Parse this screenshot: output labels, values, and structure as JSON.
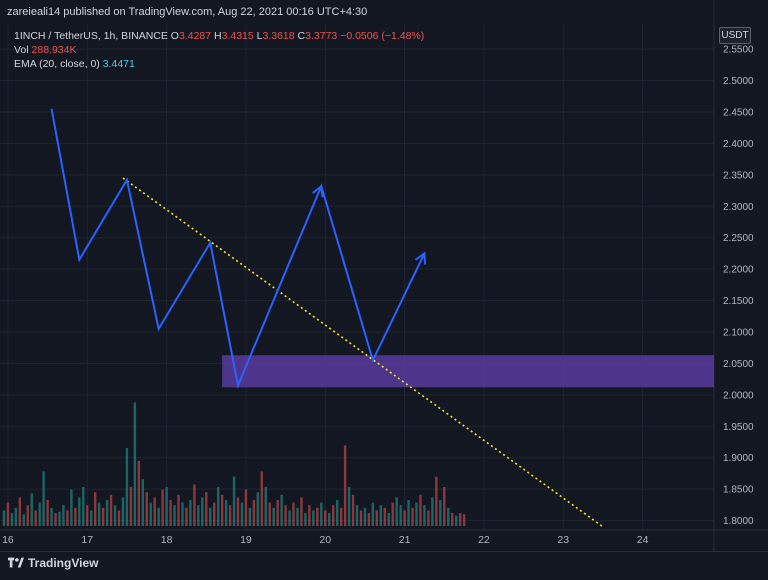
{
  "header": {
    "publisher": "zareieali14 published on TradingView.com, Aug 22, 2021 00:16 UTC+4:30"
  },
  "legend": {
    "symbol": "1INCH / TetherUS, 1h, BINANCE",
    "o_key": "O",
    "o_val": "3.4287",
    "h_key": "H",
    "h_val": "3.4315",
    "l_key": "L",
    "l_val": "3.3618",
    "c_key": "C",
    "c_val": "3.3773",
    "change": "−0.0506 (−1.48%)",
    "vol_label": "Vol",
    "vol_val": "288.934K",
    "ema_label": "EMA (20, close, 0)",
    "ema_val": "3.4471"
  },
  "price_scale": {
    "currency": "USDT"
  },
  "footer": {
    "brand": "TradingView"
  },
  "colors": {
    "background": "#131722",
    "pattern_line": "#2962ff",
    "trendline": "#f5e71f",
    "zone": "#5b3a9e",
    "vol_up": "#26a69a",
    "vol_down": "#ef5350"
  },
  "chart_data": {
    "type": "line",
    "title": "",
    "xlabel": "",
    "ylabel": "",
    "x_ticks": [
      "16",
      "17",
      "18",
      "19",
      "20",
      "21",
      "22",
      "23",
      "24"
    ],
    "y_ticks": [
      "2.5500",
      "2.5000",
      "2.4500",
      "2.4000",
      "2.3500",
      "2.3000",
      "2.2500",
      "2.2000",
      "2.1500",
      "2.1000",
      "2.0500",
      "2.0000",
      "1.9500",
      "1.9000",
      "1.8500",
      "1.8000"
    ],
    "xlim": [
      15.9,
      24.9
    ],
    "ylim": [
      1.785,
      2.59
    ],
    "series": [
      {
        "x": [
          16.55,
          16.9,
          17.5,
          17.9,
          18.55,
          18.9,
          19.95,
          20.6,
          21.25
        ],
        "y": [
          2.455,
          2.215,
          2.342,
          2.105,
          2.242,
          2.015,
          2.332,
          2.055,
          2.225
        ]
      }
    ],
    "arrows": [
      {
        "x": [
          19.95
        ],
        "y": [
          2.332
        ]
      },
      {
        "x": [
          21.25
        ],
        "y": [
          2.225
        ]
      }
    ],
    "trendline": {
      "x": [
        17.45,
        23.5
      ],
      "y": [
        2.345,
        1.79
      ]
    },
    "zone": {
      "x": [
        18.7,
        24.9
      ],
      "y": [
        2.012,
        2.063
      ]
    },
    "volume": {
      "up_color": "#26a69a",
      "down_color": "#ef5350",
      "max": 100,
      "bars": [
        {
          "x": 15.95,
          "v": 12,
          "up": true
        },
        {
          "x": 16.0,
          "v": 18,
          "up": false
        },
        {
          "x": 16.05,
          "v": 10,
          "up": true
        },
        {
          "x": 16.1,
          "v": 14,
          "up": true
        },
        {
          "x": 16.15,
          "v": 22,
          "up": false
        },
        {
          "x": 16.2,
          "v": 9,
          "up": true
        },
        {
          "x": 16.25,
          "v": 16,
          "up": false
        },
        {
          "x": 16.3,
          "v": 25,
          "up": true
        },
        {
          "x": 16.35,
          "v": 12,
          "up": false
        },
        {
          "x": 16.4,
          "v": 18,
          "up": true
        },
        {
          "x": 16.45,
          "v": 42,
          "up": true
        },
        {
          "x": 16.5,
          "v": 20,
          "up": false
        },
        {
          "x": 16.55,
          "v": 14,
          "up": true
        },
        {
          "x": 16.6,
          "v": 10,
          "up": false
        },
        {
          "x": 16.65,
          "v": 11,
          "up": true
        },
        {
          "x": 16.7,
          "v": 16,
          "up": true
        },
        {
          "x": 16.75,
          "v": 12,
          "up": false
        },
        {
          "x": 16.8,
          "v": 28,
          "up": true
        },
        {
          "x": 16.85,
          "v": 14,
          "up": false
        },
        {
          "x": 16.9,
          "v": 22,
          "up": true
        },
        {
          "x": 16.95,
          "v": 30,
          "up": true
        },
        {
          "x": 17.0,
          "v": 16,
          "up": false
        },
        {
          "x": 17.05,
          "v": 12,
          "up": true
        },
        {
          "x": 17.1,
          "v": 26,
          "up": false
        },
        {
          "x": 17.15,
          "v": 18,
          "up": true
        },
        {
          "x": 17.2,
          "v": 14,
          "up": false
        },
        {
          "x": 17.25,
          "v": 20,
          "up": true
        },
        {
          "x": 17.3,
          "v": 24,
          "up": false
        },
        {
          "x": 17.35,
          "v": 16,
          "up": true
        },
        {
          "x": 17.4,
          "v": 12,
          "up": false
        },
        {
          "x": 17.45,
          "v": 22,
          "up": true
        },
        {
          "x": 17.5,
          "v": 60,
          "up": true
        },
        {
          "x": 17.55,
          "v": 30,
          "up": false
        },
        {
          "x": 17.6,
          "v": 95,
          "up": true
        },
        {
          "x": 17.65,
          "v": 50,
          "up": false
        },
        {
          "x": 17.7,
          "v": 36,
          "up": true
        },
        {
          "x": 17.75,
          "v": 26,
          "up": false
        },
        {
          "x": 17.8,
          "v": 18,
          "up": true
        },
        {
          "x": 17.85,
          "v": 22,
          "up": false
        },
        {
          "x": 17.9,
          "v": 14,
          "up": true
        },
        {
          "x": 17.95,
          "v": 28,
          "up": false
        },
        {
          "x": 18.0,
          "v": 30,
          "up": true
        },
        {
          "x": 18.05,
          "v": 20,
          "up": false
        },
        {
          "x": 18.1,
          "v": 16,
          "up": true
        },
        {
          "x": 18.15,
          "v": 24,
          "up": false
        },
        {
          "x": 18.2,
          "v": 18,
          "up": true
        },
        {
          "x": 18.25,
          "v": 14,
          "up": false
        },
        {
          "x": 18.3,
          "v": 20,
          "up": true
        },
        {
          "x": 18.35,
          "v": 32,
          "up": false
        },
        {
          "x": 18.4,
          "v": 16,
          "up": true
        },
        {
          "x": 18.45,
          "v": 22,
          "up": true
        },
        {
          "x": 18.5,
          "v": 26,
          "up": false
        },
        {
          "x": 18.55,
          "v": 14,
          "up": true
        },
        {
          "x": 18.6,
          "v": 18,
          "up": false
        },
        {
          "x": 18.65,
          "v": 30,
          "up": true
        },
        {
          "x": 18.7,
          "v": 24,
          "up": false
        },
        {
          "x": 18.75,
          "v": 20,
          "up": true
        },
        {
          "x": 18.8,
          "v": 16,
          "up": false
        },
        {
          "x": 18.85,
          "v": 38,
          "up": true
        },
        {
          "x": 18.9,
          "v": 22,
          "up": false
        },
        {
          "x": 18.95,
          "v": 18,
          "up": true
        },
        {
          "x": 19.0,
          "v": 28,
          "up": false
        },
        {
          "x": 19.05,
          "v": 14,
          "up": true
        },
        {
          "x": 19.1,
          "v": 20,
          "up": false
        },
        {
          "x": 19.15,
          "v": 26,
          "up": true
        },
        {
          "x": 19.2,
          "v": 42,
          "up": false
        },
        {
          "x": 19.25,
          "v": 30,
          "up": true
        },
        {
          "x": 19.3,
          "v": 18,
          "up": false
        },
        {
          "x": 19.35,
          "v": 14,
          "up": true
        },
        {
          "x": 19.4,
          "v": 20,
          "up": false
        },
        {
          "x": 19.45,
          "v": 24,
          "up": true
        },
        {
          "x": 19.5,
          "v": 16,
          "up": false
        },
        {
          "x": 19.55,
          "v": 12,
          "up": true
        },
        {
          "x": 19.6,
          "v": 18,
          "up": false
        },
        {
          "x": 19.65,
          "v": 14,
          "up": true
        },
        {
          "x": 19.7,
          "v": 22,
          "up": false
        },
        {
          "x": 19.75,
          "v": 10,
          "up": true
        },
        {
          "x": 19.8,
          "v": 16,
          "up": false
        },
        {
          "x": 19.85,
          "v": 12,
          "up": true
        },
        {
          "x": 19.9,
          "v": 14,
          "up": false
        },
        {
          "x": 19.95,
          "v": 18,
          "up": true
        },
        {
          "x": 20.0,
          "v": 12,
          "up": false
        },
        {
          "x": 20.05,
          "v": 10,
          "up": true
        },
        {
          "x": 20.1,
          "v": 16,
          "up": false
        },
        {
          "x": 20.15,
          "v": 20,
          "up": true
        },
        {
          "x": 20.2,
          "v": 14,
          "up": false
        },
        {
          "x": 20.25,
          "v": 62,
          "up": false
        },
        {
          "x": 20.3,
          "v": 30,
          "up": true
        },
        {
          "x": 20.35,
          "v": 24,
          "up": false
        },
        {
          "x": 20.4,
          "v": 16,
          "up": true
        },
        {
          "x": 20.45,
          "v": 12,
          "up": false
        },
        {
          "x": 20.5,
          "v": 14,
          "up": true
        },
        {
          "x": 20.55,
          "v": 10,
          "up": false
        },
        {
          "x": 20.6,
          "v": 18,
          "up": true
        },
        {
          "x": 20.65,
          "v": 12,
          "up": false
        },
        {
          "x": 20.7,
          "v": 16,
          "up": true
        },
        {
          "x": 20.75,
          "v": 14,
          "up": false
        },
        {
          "x": 20.8,
          "v": 10,
          "up": true
        },
        {
          "x": 20.85,
          "v": 18,
          "up": false
        },
        {
          "x": 20.9,
          "v": 22,
          "up": true
        },
        {
          "x": 20.95,
          "v": 16,
          "up": true
        },
        {
          "x": 21.0,
          "v": 12,
          "up": false
        },
        {
          "x": 21.05,
          "v": 20,
          "up": true
        },
        {
          "x": 21.1,
          "v": 14,
          "up": false
        },
        {
          "x": 21.15,
          "v": 18,
          "up": true
        },
        {
          "x": 21.2,
          "v": 24,
          "up": false
        },
        {
          "x": 21.25,
          "v": 16,
          "up": true
        },
        {
          "x": 21.3,
          "v": 12,
          "up": false
        },
        {
          "x": 21.35,
          "v": 22,
          "up": true
        },
        {
          "x": 21.4,
          "v": 38,
          "up": false
        },
        {
          "x": 21.45,
          "v": 20,
          "up": true
        },
        {
          "x": 21.5,
          "v": 30,
          "up": false
        },
        {
          "x": 21.55,
          "v": 14,
          "up": true
        },
        {
          "x": 21.6,
          "v": 10,
          "up": false
        },
        {
          "x": 21.65,
          "v": 8,
          "up": true
        },
        {
          "x": 21.7,
          "v": 10,
          "up": false
        },
        {
          "x": 21.75,
          "v": 9,
          "up": false
        }
      ]
    },
    "grid": true,
    "legend": "top-left"
  }
}
